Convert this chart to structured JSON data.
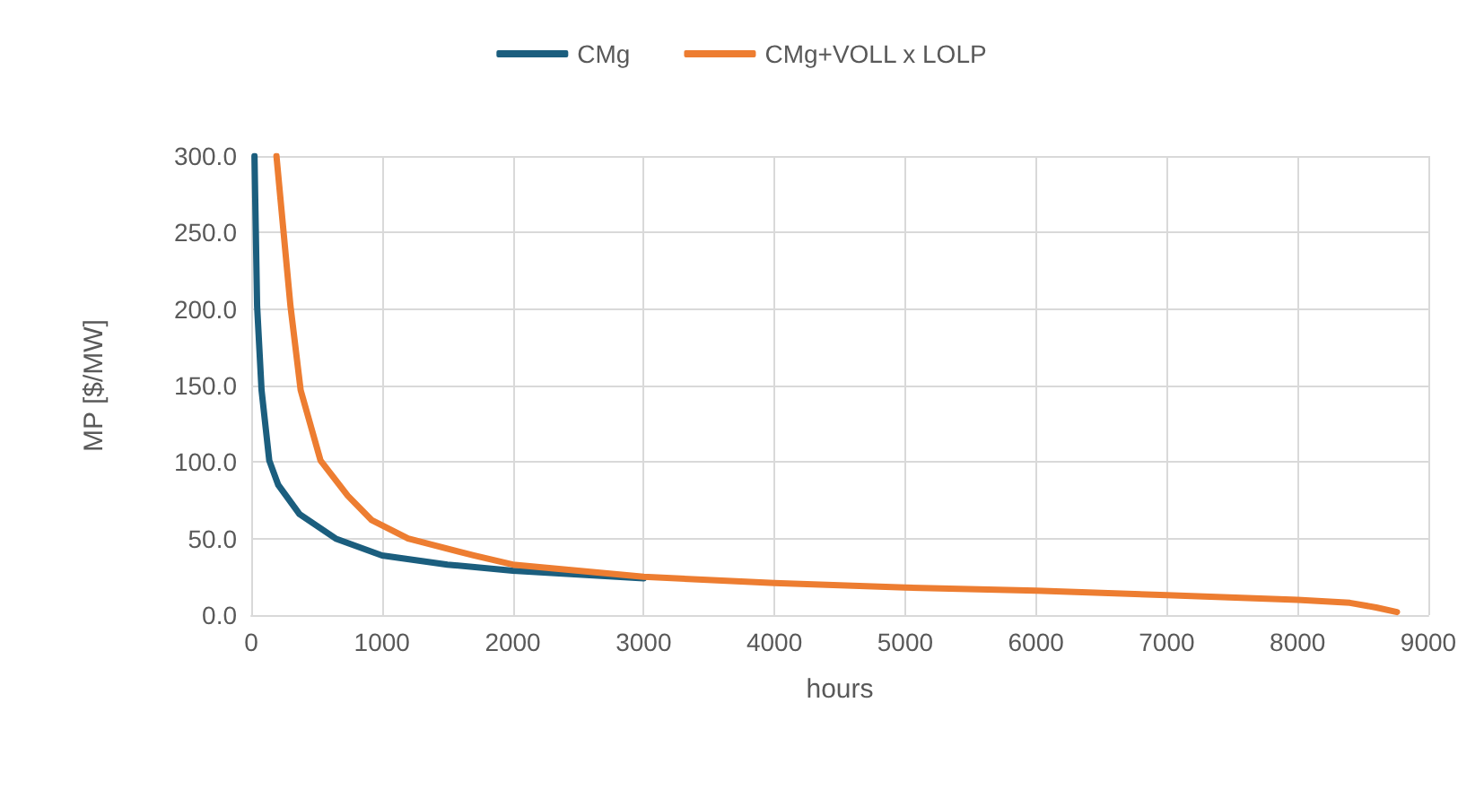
{
  "chart_data": {
    "type": "line",
    "xlabel": "hours",
    "ylabel": "MP [$/MW]",
    "xlim": [
      0,
      9000
    ],
    "xticks": [
      0,
      1000,
      2000,
      3000,
      4000,
      5000,
      6000,
      7000,
      8000,
      9000
    ],
    "ylim": [
      0,
      300
    ],
    "yticks": [
      {
        "value": 0,
        "label": "0.0"
      },
      {
        "value": 50,
        "label": "50.0"
      },
      {
        "value": 100,
        "label": "100.0"
      },
      {
        "value": 150,
        "label": "150.0"
      },
      {
        "value": 200,
        "label": "200.0"
      },
      {
        "value": 250,
        "label": "250.0"
      },
      {
        "value": 300,
        "label": "300.0"
      }
    ],
    "grid": true,
    "legend": "top",
    "marker": "none",
    "line_style": "solid",
    "series": [
      {
        "name": "CMg",
        "color": "#1b5e7e",
        "x": [
          25,
          45,
          79,
          138,
          207,
          369,
          646,
          1000,
          1500,
          2000,
          3000
        ],
        "values": [
          300,
          202,
          147,
          101,
          85,
          66,
          50,
          39,
          33,
          29,
          24
        ]
      },
      {
        "name": "CMg+VOLL x LOLP",
        "color": "#ed7d31",
        "x": [
          193,
          300,
          378,
          530,
          738,
          922,
          1200,
          1700,
          2000,
          3000,
          4000,
          5000,
          6000,
          7000,
          8000,
          8400,
          8600,
          8760
        ],
        "values": [
          300,
          202,
          147,
          101,
          78,
          62,
          50,
          39,
          33,
          25,
          21,
          18,
          16,
          13,
          10,
          8,
          5,
          2
        ]
      }
    ]
  }
}
